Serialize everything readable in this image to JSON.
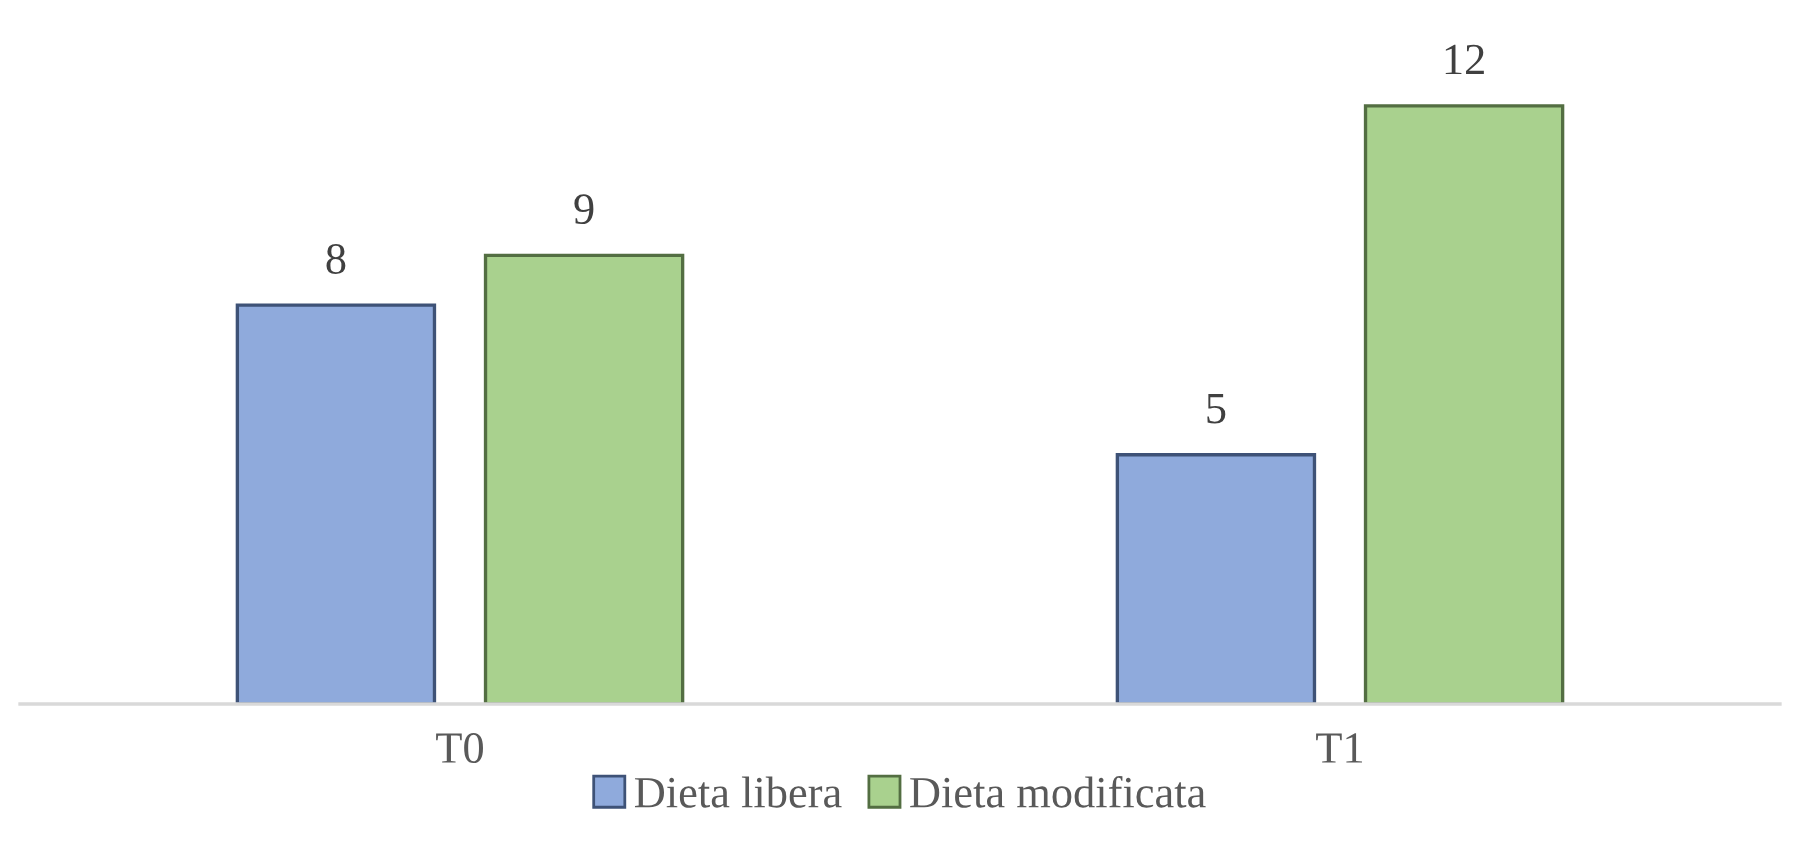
{
  "chart_data": {
    "type": "bar",
    "categories": [
      "T0",
      "T1"
    ],
    "series": [
      {
        "name": "Dieta libera",
        "color": "#8faadc",
        "values": [
          8,
          5
        ]
      },
      {
        "name": "Dieta modificata",
        "color": "#a9d18e",
        "values": [
          9,
          12
        ]
      }
    ],
    "data_labels": true,
    "legend": "bottom",
    "grid": false,
    "tick_labels": "x"
  }
}
